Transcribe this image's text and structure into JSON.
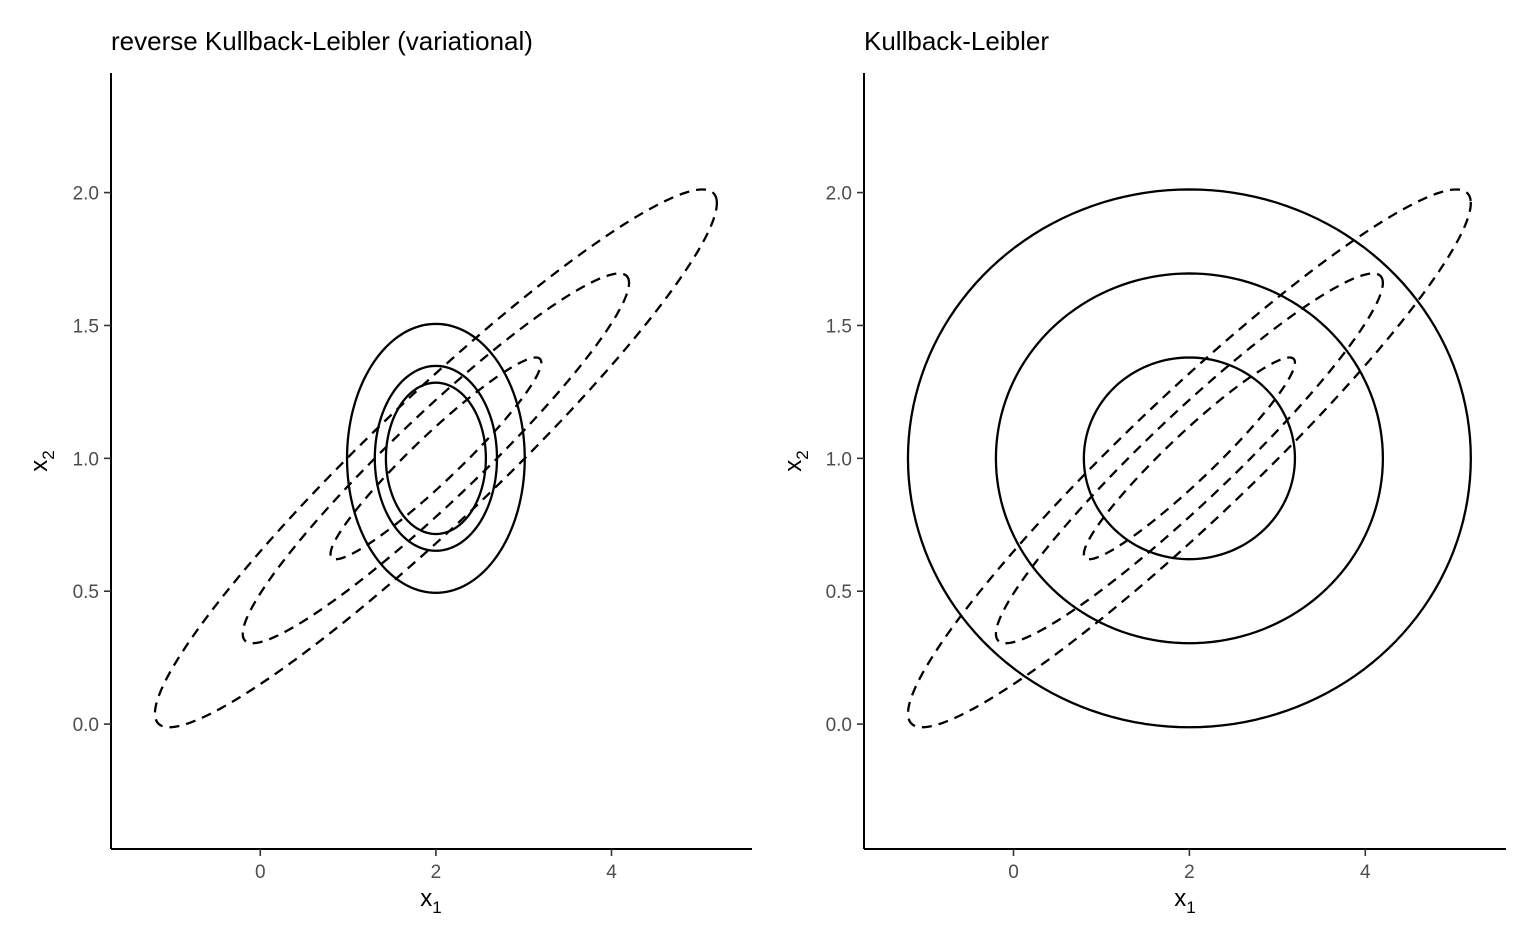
{
  "chart_data": [
    {
      "type": "contour",
      "title": "reverse Kullback-Leibler (variational)",
      "xlabel": "x",
      "xlabel_sub": "1",
      "ylabel": "x",
      "ylabel_sub": "2",
      "xlim": [
        -1.7,
        5.6
      ],
      "ylim": [
        -0.47,
        2.45
      ],
      "x_ticks": [
        0,
        2,
        4
      ],
      "y_ticks": [
        0.0,
        0.5,
        1.0,
        1.5,
        2.0
      ],
      "x_tick_labels": [
        "0",
        "2",
        "4"
      ],
      "y_tick_labels": [
        "0.0",
        "0.5",
        "1.0",
        "1.5",
        "2.0"
      ],
      "series": [
        {
          "style": "dashed",
          "center": [
            2,
            1
          ],
          "covariance": [
            [
              1,
              0.3
            ],
            [
              0.3,
              0.1
            ]
          ],
          "radii": [
            1.2,
            2.2,
            3.2
          ]
        },
        {
          "style": "solid",
          "center": [
            2,
            1
          ],
          "covariance": [
            [
              0.1,
              0
            ],
            [
              0,
              0.025
            ]
          ],
          "radii": [
            1.8,
            2.2,
            3.2
          ]
        }
      ]
    },
    {
      "type": "contour",
      "title": "Kullback-Leibler",
      "xlabel": "x",
      "xlabel_sub": "1",
      "ylabel": "x",
      "ylabel_sub": "2",
      "xlim": [
        -1.7,
        5.6
      ],
      "ylim": [
        -0.47,
        2.45
      ],
      "x_ticks": [
        0,
        2,
        4
      ],
      "y_ticks": [
        0.0,
        0.5,
        1.0,
        1.5,
        2.0
      ],
      "x_tick_labels": [
        "0",
        "2",
        "4"
      ],
      "y_tick_labels": [
        "0.0",
        "0.5",
        "1.0",
        "1.5",
        "2.0"
      ],
      "series": [
        {
          "style": "dashed",
          "center": [
            2,
            1
          ],
          "covariance": [
            [
              1,
              0.3
            ],
            [
              0.3,
              0.1
            ]
          ],
          "radii": [
            1.2,
            2.2,
            3.2
          ]
        },
        {
          "style": "solid",
          "center": [
            2,
            1
          ],
          "covariance": [
            [
              1,
              0
            ],
            [
              0,
              0.1
            ]
          ],
          "radii": [
            1.2,
            2.2,
            3.2
          ]
        }
      ]
    }
  ]
}
